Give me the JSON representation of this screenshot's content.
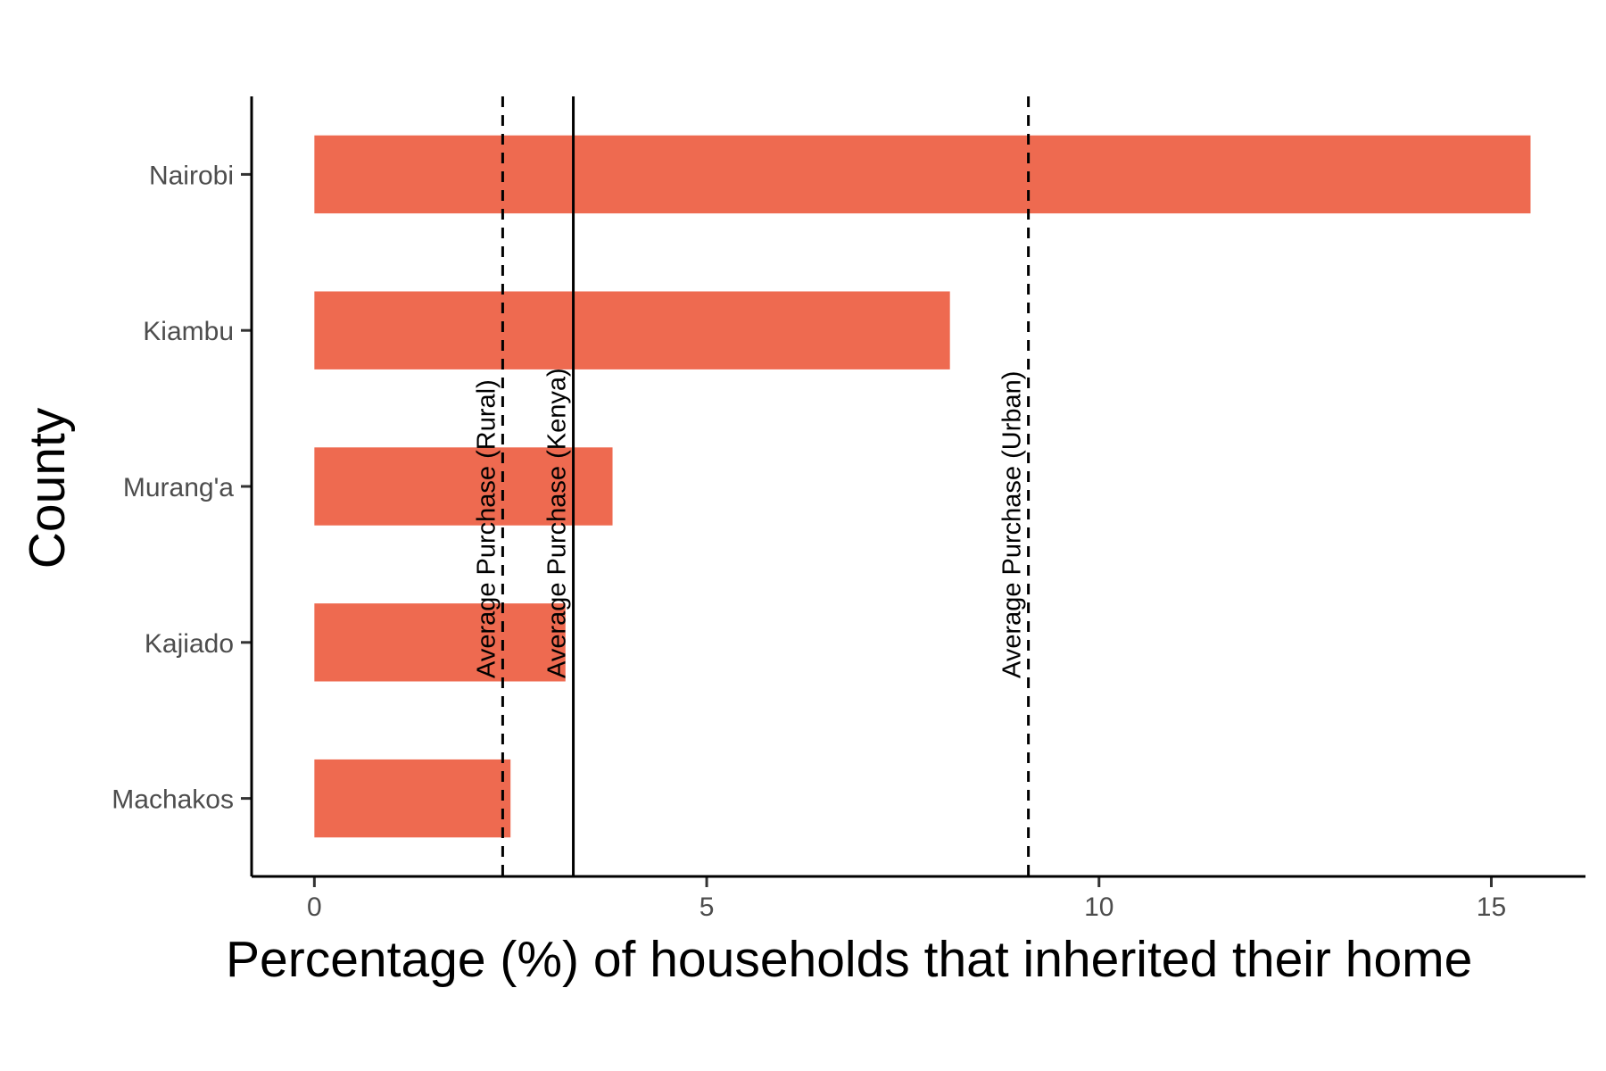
{
  "chart_data": {
    "type": "bar",
    "orientation": "horizontal",
    "categories": [
      "Nairobi",
      "Kiambu",
      "Murang'a",
      "Kajiado",
      "Machakos"
    ],
    "values": [
      15.5,
      8.1,
      3.8,
      3.2,
      2.5
    ],
    "bar_color": "#EE6A50",
    "xlabel": "Percentage (%) of households that inherited their home",
    "ylabel": "County",
    "xlim": [
      -0.8,
      16.2
    ],
    "xticks": [
      0,
      5,
      10,
      15
    ],
    "grid": false,
    "reference_lines": [
      {
        "label": "Average Purchase (Rural)",
        "value": 2.4,
        "style": "dashed"
      },
      {
        "label": "Average Purchase (Kenya)",
        "value": 3.3,
        "style": "solid"
      },
      {
        "label": "Average Purchase (Urban)",
        "value": 9.1,
        "style": "dashed"
      }
    ]
  }
}
